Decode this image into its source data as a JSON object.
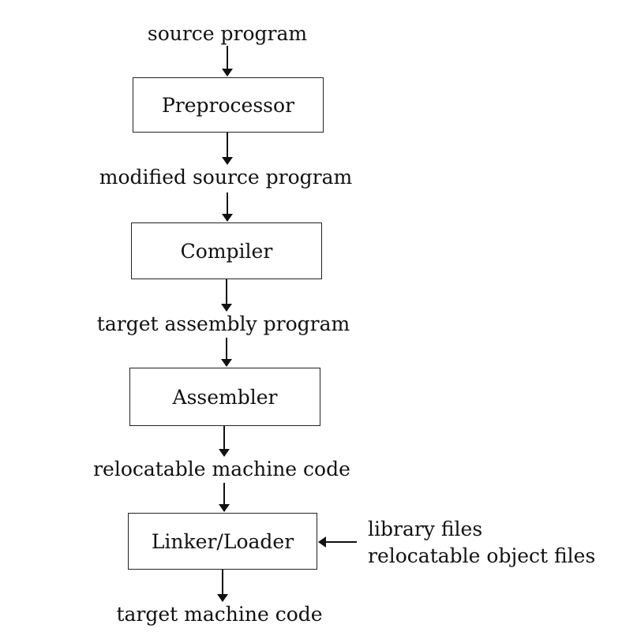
{
  "flow": {
    "input_source": "source program",
    "stage_preprocessor": "Preprocessor",
    "output_modified": "modified source program",
    "stage_compiler": "Compiler",
    "output_assembly": "target assembly program",
    "stage_assembler": "Assembler",
    "output_relocatable": "relocatable machine code",
    "stage_linker": "Linker/Loader",
    "output_target": "target machine code"
  },
  "side_inputs": {
    "line1": "library files",
    "line2": "relocatable object files"
  }
}
